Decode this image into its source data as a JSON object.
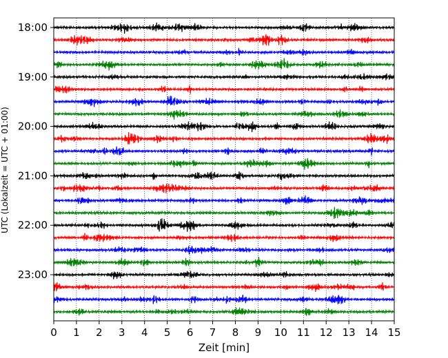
{
  "chart_data": {
    "type": "line",
    "title": "",
    "xlabel": "Zeit  [min]",
    "ylabel": "UTC (Lokalzeit = UTC + 01:00)",
    "xlim": [
      0,
      15
    ],
    "x_ticks": [
      "0",
      "1",
      "2",
      "3",
      "4",
      "5",
      "6",
      "7",
      "8",
      "9",
      "10",
      "11",
      "12",
      "13",
      "14",
      "15"
    ],
    "y_ticks": [
      {
        "label": "18:00",
        "trace_index": 0
      },
      {
        "label": "19:00",
        "trace_index": 4
      },
      {
        "label": "20:00",
        "trace_index": 8
      },
      {
        "label": "21:00",
        "trace_index": 12
      },
      {
        "label": "22:00",
        "trace_index": 16
      },
      {
        "label": "23:00",
        "trace_index": 20
      }
    ],
    "grid": {
      "vertical": true,
      "style": "dotted"
    },
    "trace_count": 24,
    "trace_minutes": 15,
    "trace_colors": [
      "#000000",
      "#ff0000",
      "#0000ff",
      "#008000"
    ]
  }
}
